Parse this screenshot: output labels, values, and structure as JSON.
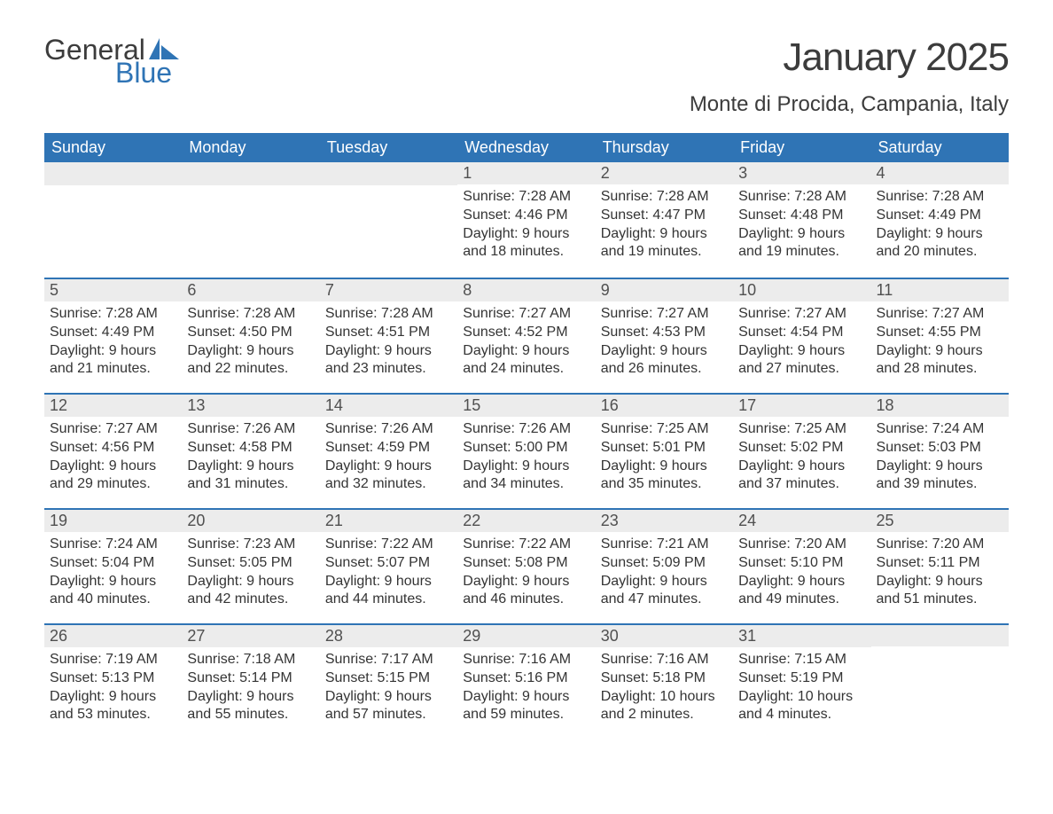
{
  "logo": {
    "general": "General",
    "blue": "Blue",
    "logo_color": "#2f74b5"
  },
  "header": {
    "month_title": "January 2025",
    "location": "Monte di Procida, Campania, Italy"
  },
  "calendar": {
    "header_bg": "#2f74b5",
    "header_fg": "#ffffff",
    "daynum_bg": "#ececec",
    "daynum_border": "#2f74b5",
    "text_color": "#343434",
    "day_names": [
      "Sunday",
      "Monday",
      "Tuesday",
      "Wednesday",
      "Thursday",
      "Friday",
      "Saturday"
    ],
    "weeks": [
      [
        null,
        null,
        null,
        {
          "n": "1",
          "sunrise": "7:28 AM",
          "sunset": "4:46 PM",
          "daylight": "9 hours and 18 minutes."
        },
        {
          "n": "2",
          "sunrise": "7:28 AM",
          "sunset": "4:47 PM",
          "daylight": "9 hours and 19 minutes."
        },
        {
          "n": "3",
          "sunrise": "7:28 AM",
          "sunset": "4:48 PM",
          "daylight": "9 hours and 19 minutes."
        },
        {
          "n": "4",
          "sunrise": "7:28 AM",
          "sunset": "4:49 PM",
          "daylight": "9 hours and 20 minutes."
        }
      ],
      [
        {
          "n": "5",
          "sunrise": "7:28 AM",
          "sunset": "4:49 PM",
          "daylight": "9 hours and 21 minutes."
        },
        {
          "n": "6",
          "sunrise": "7:28 AM",
          "sunset": "4:50 PM",
          "daylight": "9 hours and 22 minutes."
        },
        {
          "n": "7",
          "sunrise": "7:28 AM",
          "sunset": "4:51 PM",
          "daylight": "9 hours and 23 minutes."
        },
        {
          "n": "8",
          "sunrise": "7:27 AM",
          "sunset": "4:52 PM",
          "daylight": "9 hours and 24 minutes."
        },
        {
          "n": "9",
          "sunrise": "7:27 AM",
          "sunset": "4:53 PM",
          "daylight": "9 hours and 26 minutes."
        },
        {
          "n": "10",
          "sunrise": "7:27 AM",
          "sunset": "4:54 PM",
          "daylight": "9 hours and 27 minutes."
        },
        {
          "n": "11",
          "sunrise": "7:27 AM",
          "sunset": "4:55 PM",
          "daylight": "9 hours and 28 minutes."
        }
      ],
      [
        {
          "n": "12",
          "sunrise": "7:27 AM",
          "sunset": "4:56 PM",
          "daylight": "9 hours and 29 minutes."
        },
        {
          "n": "13",
          "sunrise": "7:26 AM",
          "sunset": "4:58 PM",
          "daylight": "9 hours and 31 minutes."
        },
        {
          "n": "14",
          "sunrise": "7:26 AM",
          "sunset": "4:59 PM",
          "daylight": "9 hours and 32 minutes."
        },
        {
          "n": "15",
          "sunrise": "7:26 AM",
          "sunset": "5:00 PM",
          "daylight": "9 hours and 34 minutes."
        },
        {
          "n": "16",
          "sunrise": "7:25 AM",
          "sunset": "5:01 PM",
          "daylight": "9 hours and 35 minutes."
        },
        {
          "n": "17",
          "sunrise": "7:25 AM",
          "sunset": "5:02 PM",
          "daylight": "9 hours and 37 minutes."
        },
        {
          "n": "18",
          "sunrise": "7:24 AM",
          "sunset": "5:03 PM",
          "daylight": "9 hours and 39 minutes."
        }
      ],
      [
        {
          "n": "19",
          "sunrise": "7:24 AM",
          "sunset": "5:04 PM",
          "daylight": "9 hours and 40 minutes."
        },
        {
          "n": "20",
          "sunrise": "7:23 AM",
          "sunset": "5:05 PM",
          "daylight": "9 hours and 42 minutes."
        },
        {
          "n": "21",
          "sunrise": "7:22 AM",
          "sunset": "5:07 PM",
          "daylight": "9 hours and 44 minutes."
        },
        {
          "n": "22",
          "sunrise": "7:22 AM",
          "sunset": "5:08 PM",
          "daylight": "9 hours and 46 minutes."
        },
        {
          "n": "23",
          "sunrise": "7:21 AM",
          "sunset": "5:09 PM",
          "daylight": "9 hours and 47 minutes."
        },
        {
          "n": "24",
          "sunrise": "7:20 AM",
          "sunset": "5:10 PM",
          "daylight": "9 hours and 49 minutes."
        },
        {
          "n": "25",
          "sunrise": "7:20 AM",
          "sunset": "5:11 PM",
          "daylight": "9 hours and 51 minutes."
        }
      ],
      [
        {
          "n": "26",
          "sunrise": "7:19 AM",
          "sunset": "5:13 PM",
          "daylight": "9 hours and 53 minutes."
        },
        {
          "n": "27",
          "sunrise": "7:18 AM",
          "sunset": "5:14 PM",
          "daylight": "9 hours and 55 minutes."
        },
        {
          "n": "28",
          "sunrise": "7:17 AM",
          "sunset": "5:15 PM",
          "daylight": "9 hours and 57 minutes."
        },
        {
          "n": "29",
          "sunrise": "7:16 AM",
          "sunset": "5:16 PM",
          "daylight": "9 hours and 59 minutes."
        },
        {
          "n": "30",
          "sunrise": "7:16 AM",
          "sunset": "5:18 PM",
          "daylight": "10 hours and 2 minutes."
        },
        {
          "n": "31",
          "sunrise": "7:15 AM",
          "sunset": "5:19 PM",
          "daylight": "10 hours and 4 minutes."
        },
        null
      ]
    ]
  }
}
